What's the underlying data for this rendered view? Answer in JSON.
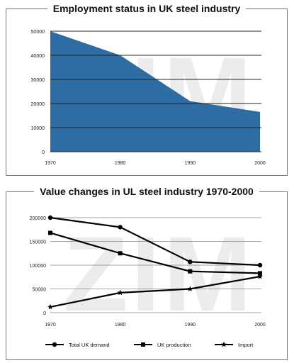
{
  "chart_data": [
    {
      "type": "area",
      "title": "Employment status in UK steel industry",
      "x": [
        "1970",
        "1980",
        "1990",
        "2000"
      ],
      "values": [
        50000,
        40000,
        21000,
        16500
      ],
      "yticks": [
        "0",
        "10000",
        "20000",
        "30000",
        "40000",
        "50000"
      ],
      "ylim": [
        0,
        50000
      ],
      "grid": true,
      "fill_color": "#2d6da4",
      "watermark": "ZIM"
    },
    {
      "type": "line",
      "title": "Value changes in UL steel industry 1970-2000",
      "x": [
        "1970",
        "1980",
        "1990",
        "2000"
      ],
      "series": [
        {
          "name": "Total UK demand",
          "marker": "circle",
          "values": [
            200000,
            180000,
            107000,
            100000
          ]
        },
        {
          "name": "UK production",
          "marker": "square",
          "values": [
            168000,
            125000,
            87000,
            83000
          ]
        },
        {
          "name": "Import",
          "marker": "star",
          "values": [
            12000,
            42000,
            50000,
            76000
          ]
        }
      ],
      "yticks": [
        "0",
        "50000",
        "100000",
        "150000",
        "200000"
      ],
      "ylim": [
        0,
        200000
      ],
      "grid": true,
      "legend": "bottom",
      "watermark": "ZIM"
    }
  ]
}
